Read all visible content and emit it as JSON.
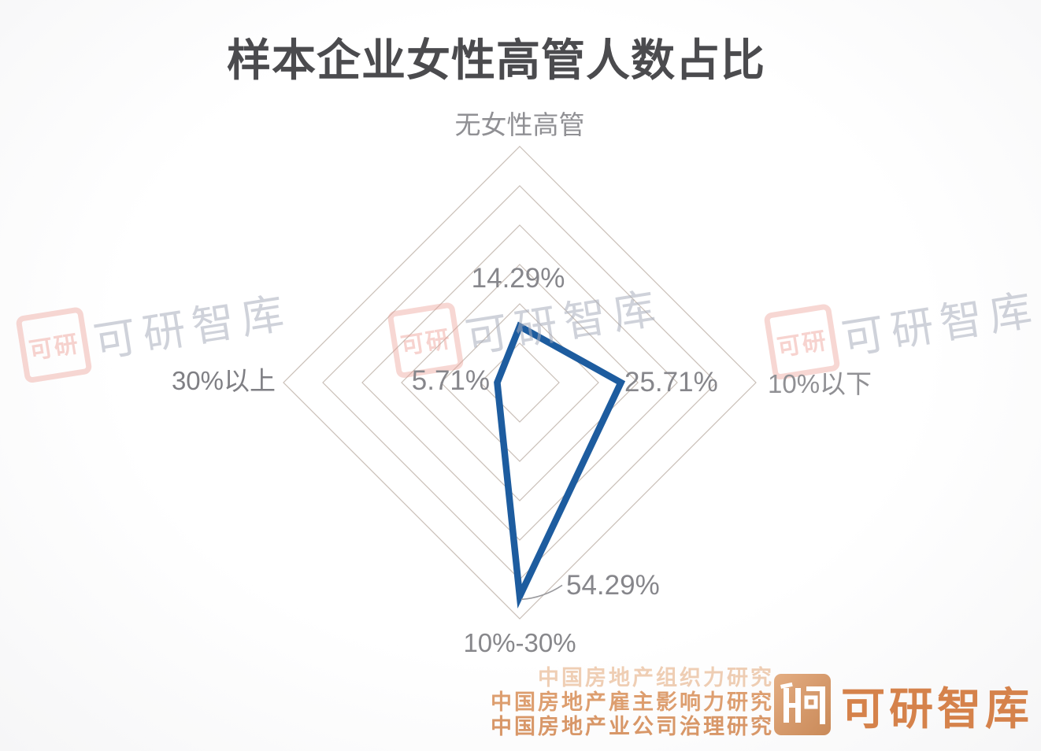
{
  "title": "样本企业女性高管人数占比",
  "chart_data": {
    "type": "radar",
    "shape": "diamond-4-axis",
    "indicators": [
      {
        "axis": "top",
        "label": "无女性高管",
        "value": 14.29,
        "display": "14.29%"
      },
      {
        "axis": "right",
        "label": "10%以下",
        "value": 25.71,
        "display": "25.71%"
      },
      {
        "axis": "bottom",
        "label": "10%-30%",
        "value": 54.29,
        "display": "54.29%"
      },
      {
        "axis": "left",
        "label": "30%以上",
        "value": 5.71,
        "display": "5.71%"
      }
    ],
    "min": 0,
    "max": 60,
    "ring_count": 6,
    "grid": "concentric diamonds, no radial axis lines",
    "series_color": "#1d5c9f",
    "grid_color": "#c9bfb7",
    "fill": "none"
  },
  "watermark": {
    "seal_text": "可研",
    "text": "可研智库"
  },
  "footer": {
    "lines": [
      "中国房地产组织力研究",
      "中国房地产雇主影响力研究",
      "中国房地产业公司治理研究"
    ],
    "logo_seal_text": "可研",
    "logo_text": "可研智库",
    "logo_color": "#d5824b"
  }
}
